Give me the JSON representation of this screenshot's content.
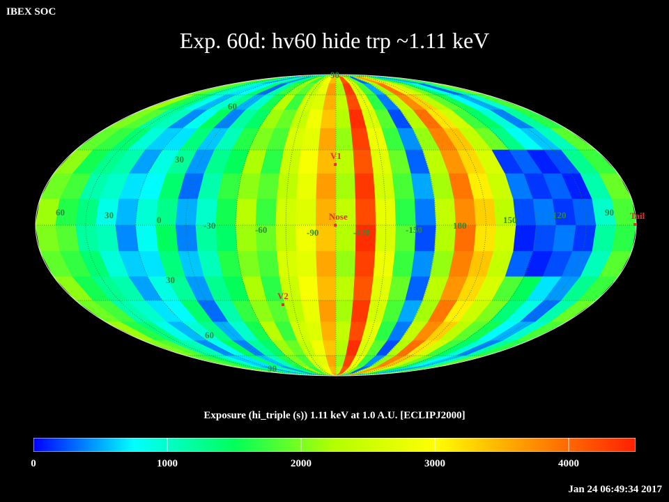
{
  "header": {
    "brand": "IBEX SOC",
    "title": "Exp.   60d: hv60 hide trp ~1.11 keV"
  },
  "map": {
    "projection": "Mollweide-like ellipse",
    "lon_labels": [
      "60",
      "30",
      "0",
      "-30",
      "-60",
      "-90",
      "-120",
      "-150",
      "180",
      "150",
      "120",
      "90"
    ],
    "lat_labels": [
      "90",
      "60",
      "30",
      "30",
      "60",
      "90"
    ],
    "markers": [
      {
        "label": "V1",
        "color": "#e03030"
      },
      {
        "label": "Nose",
        "color": "#e03030"
      },
      {
        "label": "V2",
        "color": "#e03030"
      },
      {
        "label": "Tail",
        "color": "#e03030"
      }
    ],
    "grid_color": "#2b7a3a"
  },
  "colorbar": {
    "title": "Exposure (hi_triple (s))  1.11 keV at 1.0 A.U. [ECLIPJ2000]",
    "ticks": [
      "0",
      "1000",
      "2000",
      "3000",
      "4000"
    ],
    "range": [
      0,
      4500
    ],
    "stops": [
      "#0000ff",
      "#00ffff",
      "#00ff5a",
      "#b4ff00",
      "#ffff00",
      "#ff8c00",
      "#ff2000"
    ]
  },
  "footer": {
    "timestamp": "Jan 24 06:49:34 2017"
  }
}
